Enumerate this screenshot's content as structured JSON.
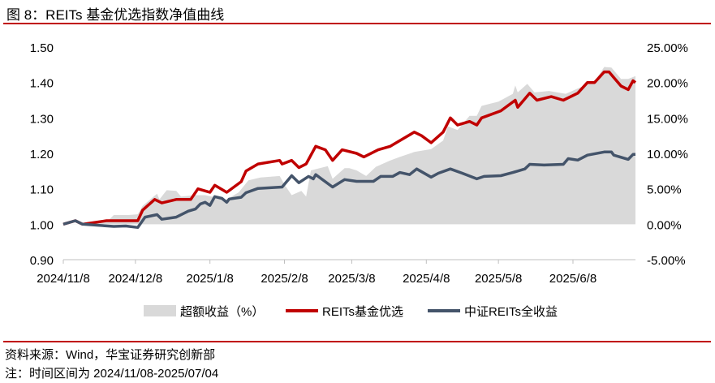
{
  "title": "图 8：REITs 基金优选指数净值曲线",
  "footer": {
    "source": "资料来源：Wind，华宝证券研究创新部",
    "note": "注：时间区间为 2024/11/08-2025/07/04"
  },
  "chart_data": {
    "type": "line",
    "title": "REITs 基金优选指数净值曲线",
    "x_unit": "days since 2024/11/08",
    "x_ticks": [
      {
        "day": 0,
        "label": "2024/11/8"
      },
      {
        "day": 30,
        "label": "2024/12/8"
      },
      {
        "day": 61,
        "label": "2025/1/8"
      },
      {
        "day": 92,
        "label": "2025/2/8"
      },
      {
        "day": 120,
        "label": "2025/3/8"
      },
      {
        "day": 151,
        "label": "2025/4/8"
      },
      {
        "day": 181,
        "label": "2025/5/8"
      },
      {
        "day": 212,
        "label": "2025/6/8"
      }
    ],
    "x_range": [
      0,
      238
    ],
    "y_left": {
      "range": [
        0.9,
        1.5
      ],
      "ticks": [
        "0.90",
        "1.00",
        "1.10",
        "1.20",
        "1.30",
        "1.40",
        "1.50"
      ]
    },
    "y_right": {
      "range": [
        -5,
        25
      ],
      "ticks": [
        "-5.00%",
        "0.00%",
        "5.00%",
        "10.00%",
        "15.00%",
        "20.00%",
        "25.00%"
      ]
    },
    "legend_position": "bottom",
    "series": [
      {
        "name": "超额收益（%）",
        "type": "area",
        "axis": "right",
        "color": "#d9d9d9",
        "points": [
          [
            0,
            0
          ],
          [
            8,
            0
          ],
          [
            18,
            0.3
          ],
          [
            21,
            1.3
          ],
          [
            27,
            1.3
          ],
          [
            31,
            1.4
          ],
          [
            33,
            2.6
          ],
          [
            39,
            4.3
          ],
          [
            40,
            3.5
          ],
          [
            43,
            4.8
          ],
          [
            47,
            4.7
          ],
          [
            49,
            3.9
          ],
          [
            55,
            4.1
          ],
          [
            59,
            4.1
          ],
          [
            63,
            3.8
          ],
          [
            67,
            3.3
          ],
          [
            73,
            4.5
          ],
          [
            77,
            6.2
          ],
          [
            82,
            6.6
          ],
          [
            90,
            6.8
          ],
          [
            92,
            5.6
          ],
          [
            95,
            4.1
          ],
          [
            99,
            4.7
          ],
          [
            101,
            3.9
          ],
          [
            103,
            7.6
          ],
          [
            110,
            8.2
          ],
          [
            112,
            6.4
          ],
          [
            117,
            7.9
          ],
          [
            119,
            7.9
          ],
          [
            122,
            7.6
          ],
          [
            126,
            6.8
          ],
          [
            130,
            8.1
          ],
          [
            136,
            9.0
          ],
          [
            140,
            9.5
          ],
          [
            146,
            10.2
          ],
          [
            153,
            10.6
          ],
          [
            158,
            11.8
          ],
          [
            160,
            13.8
          ],
          [
            164,
            13.3
          ],
          [
            169,
            15.3
          ],
          [
            172,
            15.3
          ],
          [
            174,
            16.7
          ],
          [
            181,
            17.3
          ],
          [
            187,
            18.4
          ],
          [
            188,
            19.6
          ],
          [
            189,
            18.6
          ],
          [
            193,
            19.8
          ],
          [
            196,
            18.6
          ],
          [
            202,
            18.8
          ],
          [
            209,
            18.4
          ],
          [
            215,
            19.3
          ],
          [
            221,
            20.1
          ],
          [
            225,
            22.2
          ],
          [
            228,
            22.1
          ],
          [
            232,
            20.5
          ],
          [
            235,
            20.5
          ],
          [
            238,
            20.9
          ]
        ]
      },
      {
        "name": "REITs基金优选",
        "type": "line",
        "axis": "left",
        "color": "#c00000",
        "points": [
          [
            0,
            1.0
          ],
          [
            5,
            1.01
          ],
          [
            8,
            1.0
          ],
          [
            18,
            1.01
          ],
          [
            26,
            1.01
          ],
          [
            31,
            1.01
          ],
          [
            33,
            1.04
          ],
          [
            38,
            1.07
          ],
          [
            41,
            1.06
          ],
          [
            47,
            1.07
          ],
          [
            53,
            1.07
          ],
          [
            56,
            1.1
          ],
          [
            61,
            1.09
          ],
          [
            63,
            1.11
          ],
          [
            68,
            1.09
          ],
          [
            74,
            1.12
          ],
          [
            76,
            1.15
          ],
          [
            81,
            1.17
          ],
          [
            90,
            1.18
          ],
          [
            91,
            1.17
          ],
          [
            95,
            1.18
          ],
          [
            98,
            1.16
          ],
          [
            101,
            1.17
          ],
          [
            105,
            1.22
          ],
          [
            109,
            1.21
          ],
          [
            112,
            1.18
          ],
          [
            116,
            1.21
          ],
          [
            122,
            1.2
          ],
          [
            125,
            1.19
          ],
          [
            131,
            1.21
          ],
          [
            136,
            1.22
          ],
          [
            141,
            1.24
          ],
          [
            146,
            1.26
          ],
          [
            149,
            1.25
          ],
          [
            153,
            1.23
          ],
          [
            158,
            1.26
          ],
          [
            161,
            1.3
          ],
          [
            164,
            1.28
          ],
          [
            169,
            1.29
          ],
          [
            172,
            1.28
          ],
          [
            174,
            1.3
          ],
          [
            182,
            1.32
          ],
          [
            188,
            1.35
          ],
          [
            189,
            1.33
          ],
          [
            194,
            1.37
          ],
          [
            197,
            1.35
          ],
          [
            203,
            1.36
          ],
          [
            208,
            1.35
          ],
          [
            214,
            1.37
          ],
          [
            218,
            1.4
          ],
          [
            221,
            1.4
          ],
          [
            225,
            1.43
          ],
          [
            227,
            1.43
          ],
          [
            232,
            1.39
          ],
          [
            235,
            1.38
          ],
          [
            237,
            1.405
          ],
          [
            238,
            1.4
          ]
        ]
      },
      {
        "name": "中证REITs全收益",
        "type": "line",
        "axis": "left",
        "color": "#44546a",
        "points": [
          [
            0,
            1.0
          ],
          [
            5,
            1.01
          ],
          [
            8,
            1.0
          ],
          [
            21,
            0.994
          ],
          [
            26,
            0.995
          ],
          [
            31,
            0.991
          ],
          [
            34,
            1.02
          ],
          [
            39,
            1.027
          ],
          [
            41,
            1.014
          ],
          [
            47,
            1.02
          ],
          [
            52,
            1.037
          ],
          [
            55,
            1.043
          ],
          [
            57,
            1.057
          ],
          [
            59,
            1.062
          ],
          [
            61,
            1.053
          ],
          [
            63,
            1.078
          ],
          [
            66,
            1.073
          ],
          [
            68,
            1.062
          ],
          [
            69,
            1.071
          ],
          [
            74,
            1.076
          ],
          [
            76,
            1.089
          ],
          [
            81,
            1.101
          ],
          [
            91,
            1.105
          ],
          [
            95,
            1.137
          ],
          [
            98,
            1.117
          ],
          [
            102,
            1.135
          ],
          [
            104,
            1.128
          ],
          [
            105,
            1.14
          ],
          [
            112,
            1.105
          ],
          [
            117,
            1.126
          ],
          [
            122,
            1.121
          ],
          [
            129,
            1.121
          ],
          [
            132,
            1.135
          ],
          [
            137,
            1.135
          ],
          [
            140,
            1.146
          ],
          [
            144,
            1.14
          ],
          [
            147,
            1.156
          ],
          [
            153,
            1.133
          ],
          [
            156,
            1.144
          ],
          [
            161,
            1.156
          ],
          [
            166,
            1.144
          ],
          [
            172,
            1.128
          ],
          [
            175,
            1.135
          ],
          [
            182,
            1.137
          ],
          [
            187,
            1.146
          ],
          [
            192,
            1.156
          ],
          [
            194,
            1.169
          ],
          [
            200,
            1.167
          ],
          [
            208,
            1.169
          ],
          [
            210,
            1.185
          ],
          [
            214,
            1.181
          ],
          [
            218,
            1.195
          ],
          [
            225,
            1.204
          ],
          [
            228,
            1.204
          ],
          [
            229,
            1.195
          ],
          [
            235,
            1.183
          ],
          [
            237,
            1.197
          ],
          [
            238,
            1.197
          ]
        ]
      }
    ]
  }
}
